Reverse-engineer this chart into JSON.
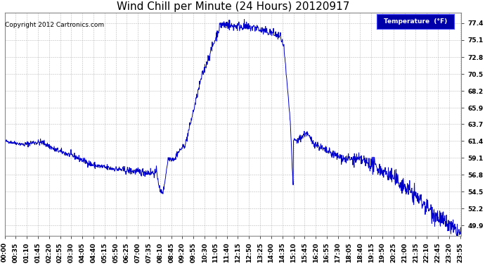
{
  "title": "Wind Chill per Minute (24 Hours) 20120917",
  "copyright_text": "Copyright 2012 Cartronics.com",
  "legend_label": "Temperature  (°F)",
  "yticks": [
    49.9,
    52.2,
    54.5,
    56.8,
    59.1,
    61.4,
    63.7,
    65.9,
    68.2,
    70.5,
    72.8,
    75.1,
    77.4
  ],
  "ylim": [
    48.5,
    78.8
  ],
  "line_color": "#0000cc",
  "bg_color": "#ffffff",
  "plot_bg_color": "#ffffff",
  "grid_color": "#aaaaaa",
  "title_fontsize": 11,
  "tick_fontsize": 6.5,
  "legend_bg_color": "#0000aa",
  "legend_text_color": "#ffffff"
}
